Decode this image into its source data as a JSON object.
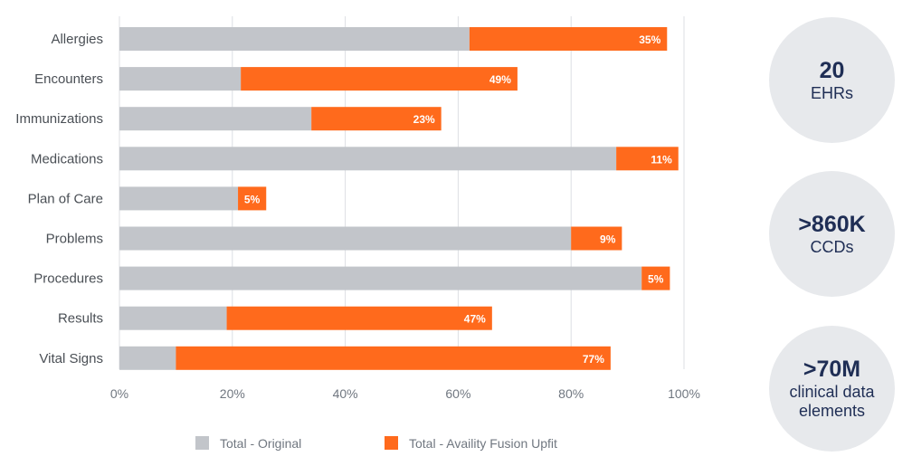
{
  "chart_data": {
    "type": "bar",
    "stacked": true,
    "orientation": "horizontal",
    "categories": [
      "Allergies",
      "Encounters",
      "Immunizations",
      "Medications",
      "Plan of Care",
      "Problems",
      "Procedures",
      "Results",
      "Vital Signs"
    ],
    "series": [
      {
        "name": "Total - Original",
        "color": "#c2c5ca",
        "values": [
          62,
          21.5,
          34,
          88,
          21,
          80,
          92.5,
          19,
          10
        ]
      },
      {
        "name": "Total - Availity Fusion Upfit",
        "color": "#ff6a1c",
        "values": [
          35,
          49,
          23,
          11,
          5,
          9,
          5,
          47,
          77
        ],
        "labels": [
          "35%",
          "49%",
          "23%",
          "11%",
          "5%",
          "9%",
          "5%",
          "47%",
          "77%"
        ]
      }
    ],
    "x_ticks": [
      "0%",
      "20%",
      "40%",
      "60%",
      "80%",
      "100%"
    ],
    "xlim": [
      0,
      100
    ],
    "grid": true,
    "legend_position": "bottom"
  },
  "stats": [
    {
      "value": "20",
      "label_lines": [
        "EHRs"
      ]
    },
    {
      "value": ">860K",
      "label_lines": [
        "CCDs"
      ]
    },
    {
      "value": ">70M",
      "label_lines": [
        "clinical data",
        "elements"
      ]
    }
  ]
}
